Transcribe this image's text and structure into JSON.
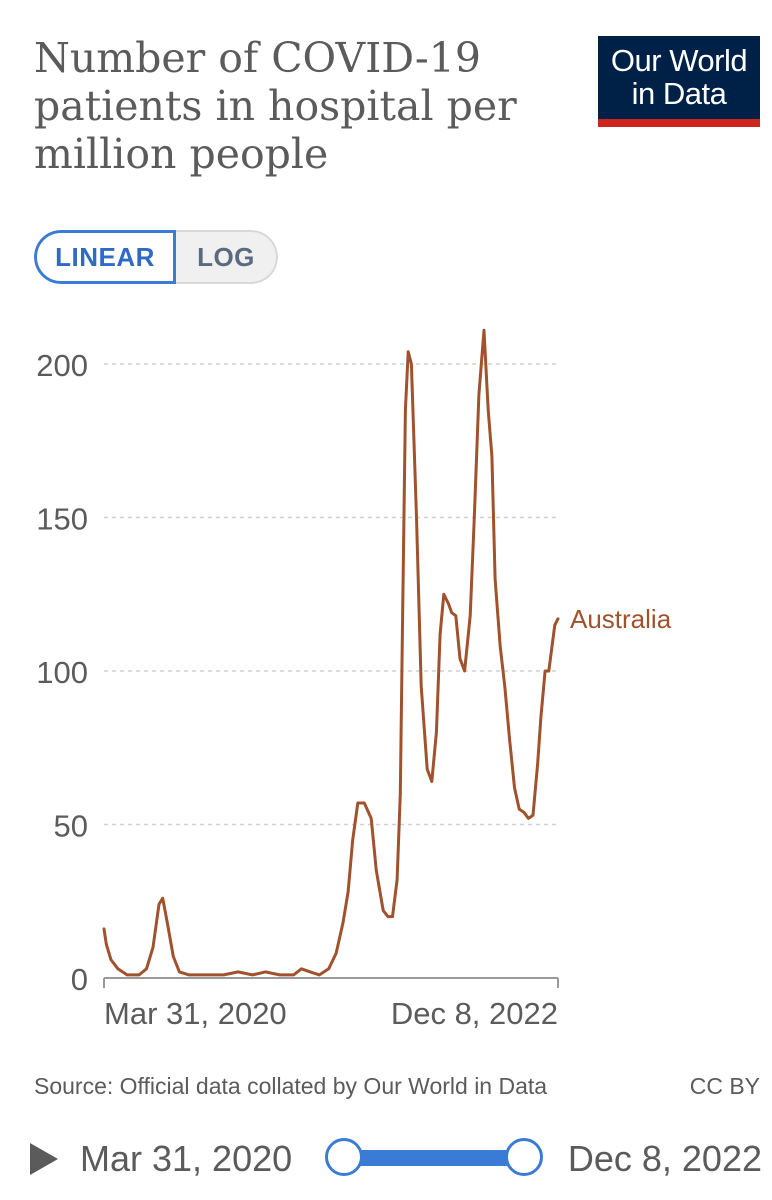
{
  "title": "Number of COVID-19 patients in hospital per million people",
  "logo": {
    "line1": "Our World",
    "line2": "in Data"
  },
  "scale_toggle": {
    "linear": "LINEAR",
    "log": "LOG",
    "selected": "LINEAR"
  },
  "source": "Source: Official data collated by Our World in Data",
  "license": "CC BY",
  "timeline": {
    "start": "Mar 31, 2020",
    "end": "Dec 8, 2022"
  },
  "colors": {
    "line": "#a0522d",
    "grid": "#d0d0d0",
    "accent": "#3a7bd5"
  },
  "chart_data": {
    "type": "line",
    "ylim": [
      0,
      200
    ],
    "yticks": [
      0,
      50,
      100,
      150,
      200
    ],
    "xticks": [
      "Mar 31, 2020",
      "Dec 8, 2022"
    ],
    "xlim": [
      "2020-03-31",
      "2022-12-08"
    ],
    "grid": true,
    "series": [
      {
        "name": "Australia",
        "x": [
          "2020-03-31",
          "2020-04-05",
          "2020-04-15",
          "2020-04-30",
          "2020-05-20",
          "2020-06-15",
          "2020-07-01",
          "2020-07-15",
          "2020-07-28",
          "2020-08-05",
          "2020-08-15",
          "2020-08-28",
          "2020-09-10",
          "2020-10-01",
          "2020-11-01",
          "2020-12-15",
          "2021-01-15",
          "2021-02-15",
          "2021-03-15",
          "2021-04-15",
          "2021-05-15",
          "2021-06-01",
          "2021-06-20",
          "2021-07-10",
          "2021-07-30",
          "2021-08-15",
          "2021-08-30",
          "2021-09-10",
          "2021-09-20",
          "2021-10-01",
          "2021-10-15",
          "2021-10-30",
          "2021-11-10",
          "2021-11-25",
          "2021-12-05",
          "2021-12-15",
          "2021-12-25",
          "2022-01-01",
          "2022-01-06",
          "2022-01-12",
          "2022-01-18",
          "2022-01-25",
          "2022-02-05",
          "2022-02-15",
          "2022-02-28",
          "2022-03-10",
          "2022-03-20",
          "2022-03-28",
          "2022-04-05",
          "2022-04-15",
          "2022-04-22",
          "2022-05-01",
          "2022-05-10",
          "2022-05-20",
          "2022-06-01",
          "2022-06-10",
          "2022-06-20",
          "2022-07-01",
          "2022-07-10",
          "2022-07-18",
          "2022-07-25",
          "2022-08-05",
          "2022-08-15",
          "2022-08-25",
          "2022-09-05",
          "2022-09-15",
          "2022-09-25",
          "2022-10-05",
          "2022-10-15",
          "2022-10-25",
          "2022-11-01",
          "2022-11-10",
          "2022-11-18",
          "2022-11-25",
          "2022-12-01",
          "2022-12-08"
        ],
        "y": [
          16,
          11,
          6,
          3,
          1,
          1,
          3,
          10,
          24,
          26,
          18,
          7,
          2,
          1,
          1,
          1,
          2,
          1,
          2,
          1,
          1,
          3,
          2,
          1,
          3,
          8,
          18,
          28,
          45,
          57,
          57,
          52,
          35,
          22,
          20,
          20,
          32,
          60,
          120,
          185,
          204,
          200,
          150,
          95,
          68,
          64,
          80,
          112,
          125,
          122,
          119,
          118,
          104,
          100,
          118,
          150,
          190,
          211,
          185,
          170,
          130,
          108,
          95,
          78,
          62,
          55,
          54,
          52,
          53,
          70,
          85,
          100,
          100,
          108,
          115,
          117
        ]
      }
    ]
  }
}
